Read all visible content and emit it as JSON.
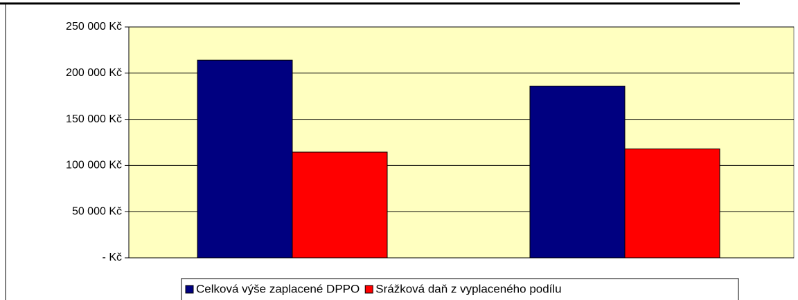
{
  "chart_data": {
    "type": "bar",
    "categories": [
      null,
      null
    ],
    "series": [
      {
        "name": "Celková výše zaplacené DPPO",
        "color": "#000080",
        "values": [
          214000,
          186000
        ]
      },
      {
        "name": "Srážková daň z vyplaceného podílu",
        "color": "#ff0000",
        "values": [
          114500,
          118000
        ]
      }
    ],
    "ylim": [
      0,
      250000
    ],
    "yticks": [
      {
        "value": 0,
        "label": "- Kč"
      },
      {
        "value": 50000,
        "label": "50 000 Kč"
      },
      {
        "value": 100000,
        "label": "100 000 Kč"
      },
      {
        "value": 150000,
        "label": "150 000 Kč"
      },
      {
        "value": 200000,
        "label": "200 000 Kč"
      },
      {
        "value": 250000,
        "label": "250 000 Kč"
      }
    ],
    "grid": true,
    "plot_background": "#ffffc0",
    "legend": "bottom"
  }
}
